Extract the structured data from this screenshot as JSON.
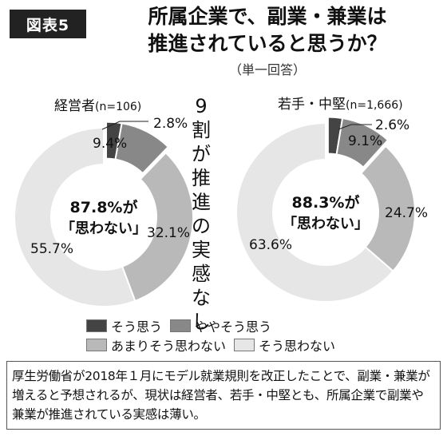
{
  "figure": {
    "badge": "図表5",
    "title_line1": "所属企業で、副業・兼業は",
    "title_line2": "推進されていると思うか？",
    "subtitle": "（単一回答）",
    "callout": [
      "9",
      "割",
      "が",
      "推",
      "進",
      "の",
      "実",
      "感",
      "な",
      "し"
    ]
  },
  "chart_data": [
    {
      "type": "pie",
      "group": "経営者",
      "n_label": "(n=106)",
      "categories": [
        "そう思う",
        "ややそう思う",
        "あまりそう思わない",
        "そう思わない"
      ],
      "values": [
        2.8,
        9.4,
        32.1,
        55.7
      ],
      "value_labels": [
        "2.8%",
        "9.4%",
        "32.1%",
        "55.7%"
      ],
      "center_line1": "87.8%が",
      "center_line2": "「思わない」",
      "exploded": [
        true,
        true,
        false,
        false
      ]
    },
    {
      "type": "pie",
      "group": "若手・中堅",
      "n_label": "(n=1,666)",
      "categories": [
        "そう思う",
        "ややそう思う",
        "あまりそう思わない",
        "そう思わない"
      ],
      "values": [
        2.6,
        9.1,
        24.7,
        63.6
      ],
      "value_labels": [
        "2.6%",
        "9.1%",
        "24.7%",
        "63.6%"
      ],
      "center_line1": "88.3%が",
      "center_line2": "「思わない」",
      "exploded": [
        true,
        true,
        false,
        false
      ]
    }
  ],
  "legend": {
    "items": [
      {
        "label": "そう思う",
        "color": "#444444"
      },
      {
        "label": "ややそう思う",
        "color": "#888888"
      },
      {
        "label": "あまりそう思わない",
        "color": "#b9b9b9"
      },
      {
        "label": "そう思わない",
        "color": "#e6e6e6"
      }
    ]
  },
  "note": {
    "text": "厚生労働省が2018年１月にモデル就業規則を改正したことで、副業・兼業が増えると予想されるが、現状は経営者、若手・中堅とも、所属企業で副業や兼業が推進されている実感は薄い。"
  }
}
